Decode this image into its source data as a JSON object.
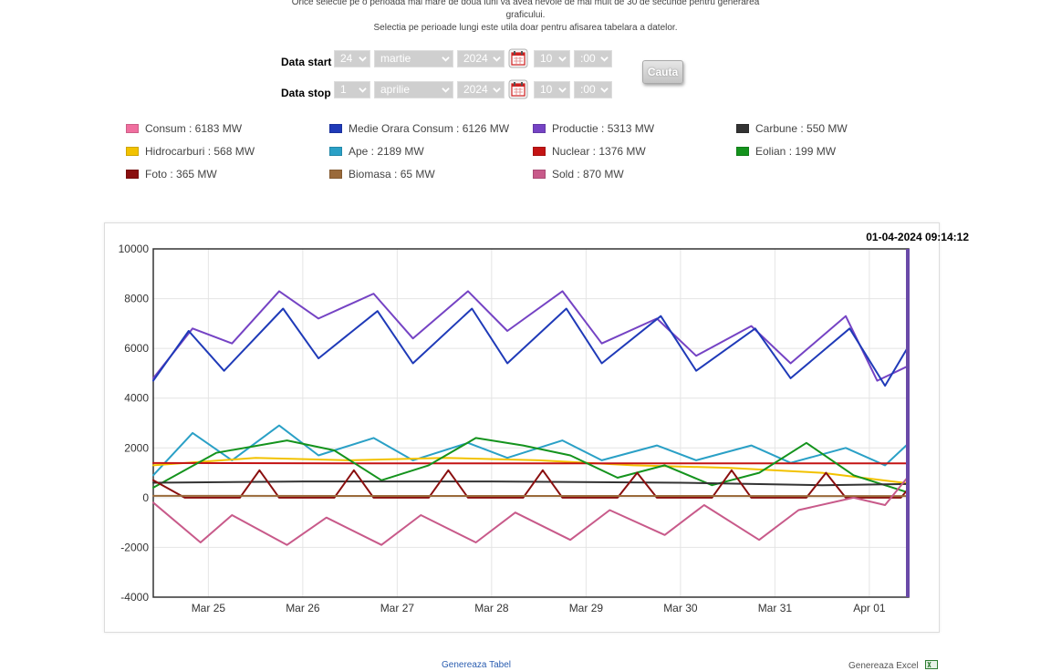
{
  "notice": {
    "line1": "Orice selectie pe o perioada mai mare de doua luni va avea nevoie de mai mult de 30 de secunde pentru generarea",
    "line2": "graficului.",
    "line3": "Selectia pe perioade lungi este utila doar pentru afisarea tabelara a datelor."
  },
  "form": {
    "start": {
      "label": "Data start",
      "day": "24",
      "month": "martie",
      "year": "2024",
      "hour": "10",
      "minute": ":00"
    },
    "stop": {
      "label": "Data stop",
      "day": "1",
      "month": "aprilie",
      "year": "2024",
      "hour": "10",
      "minute": ":00"
    },
    "search_label": "Cauta",
    "icons": {
      "calendar": "calendar-icon",
      "dropdown": "chevron-down-icon"
    }
  },
  "legend": [
    {
      "label": "Consum : 6183 MW",
      "color": "#f06f9f"
    },
    {
      "label": "Medie Orara Consum : 6126 MW",
      "color": "#1f3ab8"
    },
    {
      "label": "Productie : 5313 MW",
      "color": "#7543c4"
    },
    {
      "label": "Carbune : 550 MW",
      "color": "#333333"
    },
    {
      "label": "Hidrocarburi : 568 MW",
      "color": "#f2c200"
    },
    {
      "label": "Ape : 2189 MW",
      "color": "#2aa0c6"
    },
    {
      "label": "Nuclear : 1376 MW",
      "color": "#c41414"
    },
    {
      "label": "Eolian : 199 MW",
      "color": "#14931d"
    },
    {
      "label": "Foto : 365 MW",
      "color": "#8a0f0f"
    },
    {
      "label": "Biomasa : 65 MW",
      "color": "#9a6a3a"
    },
    {
      "label": "Sold : 870 MW",
      "color": "#c85a8a"
    }
  ],
  "timestamp": "01-04-2024 09:14:12",
  "footer": {
    "generate_table": "Genereaza Tabel",
    "generate_excel": "Genereaza Excel"
  },
  "chart_data": {
    "type": "line",
    "x_start": "2024-03-24 10:00",
    "x_end": "2024-04-01 10:00",
    "xticks": [
      "Mar 25",
      "Mar 26",
      "Mar 27",
      "Mar 28",
      "Mar 29",
      "Mar 30",
      "Mar 31",
      "Apr 01"
    ],
    "yticks": [
      10000,
      8000,
      6000,
      4000,
      2000,
      0,
      -2000,
      -4000
    ],
    "ylim": [
      -4000,
      10000
    ],
    "grid": true,
    "series": [
      {
        "name": "Productie",
        "color": "#7543c4",
        "x": [
          "2024-03-24 10:00",
          "2024-03-24 20:00",
          "2024-03-25 06:00",
          "2024-03-25 18:00",
          "2024-03-26 04:00",
          "2024-03-26 18:00",
          "2024-03-27 04:00",
          "2024-03-27 18:00",
          "2024-03-28 04:00",
          "2024-03-28 18:00",
          "2024-03-29 04:00",
          "2024-03-29 18:00",
          "2024-03-30 04:00",
          "2024-03-30 18:00",
          "2024-03-31 04:00",
          "2024-03-31 18:00",
          "2024-04-01 02:00",
          "2024-04-01 10:00"
        ],
        "y": [
          4800,
          6800,
          6200,
          8300,
          7200,
          8200,
          6400,
          8300,
          6700,
          8300,
          6200,
          7200,
          5700,
          6900,
          5400,
          7300,
          4700,
          5300
        ]
      },
      {
        "name": "Medie Orara Consum",
        "color": "#1f3ab8",
        "x": [
          "2024-03-24 10:00",
          "2024-03-24 19:00",
          "2024-03-25 04:00",
          "2024-03-25 19:00",
          "2024-03-26 04:00",
          "2024-03-26 19:00",
          "2024-03-27 04:00",
          "2024-03-27 19:00",
          "2024-03-28 04:00",
          "2024-03-28 19:00",
          "2024-03-29 04:00",
          "2024-03-29 19:00",
          "2024-03-30 04:00",
          "2024-03-30 19:00",
          "2024-03-31 04:00",
          "2024-03-31 19:00",
          "2024-04-01 04:00",
          "2024-04-01 10:00"
        ],
        "y": [
          4700,
          6700,
          5100,
          7600,
          5600,
          7500,
          5400,
          7600,
          5400,
          7600,
          5400,
          7300,
          5100,
          6800,
          4800,
          6800,
          4500,
          6100
        ]
      },
      {
        "name": "Ape",
        "color": "#2aa0c6",
        "x": [
          "2024-03-24 10:00",
          "2024-03-24 20:00",
          "2024-03-25 06:00",
          "2024-03-25 18:00",
          "2024-03-26 04:00",
          "2024-03-26 18:00",
          "2024-03-27 04:00",
          "2024-03-27 18:00",
          "2024-03-28 04:00",
          "2024-03-28 18:00",
          "2024-03-29 04:00",
          "2024-03-29 18:00",
          "2024-03-30 04:00",
          "2024-03-30 18:00",
          "2024-03-31 04:00",
          "2024-03-31 18:00",
          "2024-04-01 04:00",
          "2024-04-01 10:00"
        ],
        "y": [
          900,
          2600,
          1500,
          2900,
          1700,
          2400,
          1500,
          2200,
          1600,
          2300,
          1500,
          2100,
          1500,
          2100,
          1400,
          2000,
          1300,
          2190
        ]
      },
      {
        "name": "Hidrocarburi",
        "color": "#f2c200",
        "x": [
          "2024-03-24 10:00",
          "2024-03-25 12:00",
          "2024-03-26 12:00",
          "2024-03-27 12:00",
          "2024-03-28 12:00",
          "2024-03-29 12:00",
          "2024-03-30 12:00",
          "2024-03-31 12:00",
          "2024-04-01 10:00"
        ],
        "y": [
          1300,
          1600,
          1500,
          1600,
          1500,
          1300,
          1200,
          1000,
          570
        ]
      },
      {
        "name": "Nuclear",
        "color": "#c41414",
        "x": [
          "2024-03-24 10:00",
          "2024-03-26 12:00",
          "2024-03-29 12:00",
          "2024-04-01 10:00"
        ],
        "y": [
          1390,
          1380,
          1380,
          1376
        ]
      },
      {
        "name": "Eolian",
        "color": "#14931d",
        "x": [
          "2024-03-24 10:00",
          "2024-03-25 02:00",
          "2024-03-25 20:00",
          "2024-03-26 08:00",
          "2024-03-26 20:00",
          "2024-03-27 08:00",
          "2024-03-27 20:00",
          "2024-03-28 08:00",
          "2024-03-28 20:00",
          "2024-03-29 08:00",
          "2024-03-29 20:00",
          "2024-03-30 08:00",
          "2024-03-30 20:00",
          "2024-03-31 08:00",
          "2024-03-31 20:00",
          "2024-04-01 10:00"
        ],
        "y": [
          400,
          1800,
          2300,
          1900,
          700,
          1300,
          2400,
          2100,
          1700,
          800,
          1300,
          500,
          1000,
          2200,
          900,
          200
        ]
      },
      {
        "name": "Carbune",
        "color": "#333333",
        "x": [
          "2024-03-24 10:00",
          "2024-03-26 00:00",
          "2024-03-28 00:00",
          "2024-03-30 00:00",
          "2024-03-31 12:00",
          "2024-04-01 10:00"
        ],
        "y": [
          600,
          650,
          650,
          600,
          500,
          550
        ]
      },
      {
        "name": "Foto",
        "color": "#8a0f0f",
        "x": [
          "2024-03-24 10:00",
          "2024-03-24 18:00",
          "2024-03-25 08:00",
          "2024-03-25 13:00",
          "2024-03-25 18:00",
          "2024-03-26 08:00",
          "2024-03-26 13:00",
          "2024-03-26 18:00",
          "2024-03-27 08:00",
          "2024-03-27 13:00",
          "2024-03-27 18:00",
          "2024-03-28 08:00",
          "2024-03-28 13:00",
          "2024-03-28 18:00",
          "2024-03-29 08:00",
          "2024-03-29 13:00",
          "2024-03-29 18:00",
          "2024-03-30 08:00",
          "2024-03-30 13:00",
          "2024-03-30 18:00",
          "2024-03-31 08:00",
          "2024-03-31 13:00",
          "2024-03-31 18:00",
          "2024-04-01 08:00",
          "2024-04-01 10:00"
        ],
        "y": [
          700,
          0,
          0,
          1100,
          0,
          0,
          1100,
          0,
          0,
          1100,
          0,
          0,
          1100,
          0,
          0,
          1000,
          0,
          0,
          1100,
          0,
          0,
          1000,
          0,
          0,
          365
        ]
      },
      {
        "name": "Biomasa",
        "color": "#9a6a3a",
        "x": [
          "2024-03-24 10:00",
          "2024-04-01 10:00"
        ],
        "y": [
          70,
          65
        ]
      },
      {
        "name": "Sold",
        "color": "#c85a8a",
        "x": [
          "2024-03-24 10:00",
          "2024-03-24 22:00",
          "2024-03-25 06:00",
          "2024-03-25 20:00",
          "2024-03-26 06:00",
          "2024-03-26 20:00",
          "2024-03-27 06:00",
          "2024-03-27 20:00",
          "2024-03-28 06:00",
          "2024-03-28 20:00",
          "2024-03-29 06:00",
          "2024-03-29 20:00",
          "2024-03-30 06:00",
          "2024-03-30 20:00",
          "2024-03-31 06:00",
          "2024-03-31 20:00",
          "2024-04-01 04:00",
          "2024-04-01 10:00"
        ],
        "y": [
          -200,
          -1800,
          -700,
          -1900,
          -800,
          -1900,
          -700,
          -1800,
          -600,
          -1700,
          -500,
          -1500,
          -300,
          -1700,
          -500,
          0,
          -300,
          870
        ]
      }
    ]
  }
}
